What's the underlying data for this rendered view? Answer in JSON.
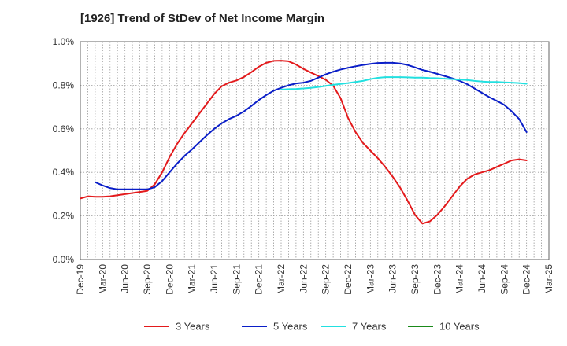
{
  "title": "[1926]  Trend of StDev of Net Income Margin",
  "chart_data": {
    "type": "line",
    "title": "[1926]  Trend of StDev of Net Income Margin",
    "xlabel": "",
    "ylabel": "",
    "x_ticks": [
      "Dec-19",
      "Mar-20",
      "Jun-20",
      "Sep-20",
      "Dec-20",
      "Mar-21",
      "Jun-21",
      "Sep-21",
      "Dec-21",
      "Mar-22",
      "Jun-22",
      "Sep-22",
      "Dec-22",
      "Mar-23",
      "Jun-23",
      "Sep-23",
      "Dec-23",
      "Mar-24",
      "Jun-24",
      "Sep-24",
      "Dec-24",
      "Mar-25"
    ],
    "y_ticks": [
      "0.0%",
      "0.2%",
      "0.4%",
      "0.6%",
      "0.8%",
      "1.0%"
    ],
    "ylim": [
      0,
      1.0
    ],
    "y_unit": "%",
    "grid": true,
    "legend_position": "bottom",
    "series": [
      {
        "name": "3 Years",
        "color": "#e31a1c",
        "x": [
          "Dec-19",
          "Jan-20",
          "Feb-20",
          "Mar-20",
          "Apr-20",
          "May-20",
          "Jun-20",
          "Jul-20",
          "Aug-20",
          "Sep-20",
          "Oct-20",
          "Nov-20",
          "Dec-20",
          "Jan-21",
          "Feb-21",
          "Mar-21",
          "Apr-21",
          "May-21",
          "Jun-21",
          "Jul-21",
          "Aug-21",
          "Sep-21",
          "Oct-21",
          "Nov-21",
          "Dec-21",
          "Jan-22",
          "Feb-22",
          "Mar-22",
          "Apr-22",
          "May-22",
          "Jun-22",
          "Jul-22",
          "Aug-22",
          "Sep-22",
          "Oct-22",
          "Nov-22",
          "Dec-22",
          "Jan-23",
          "Feb-23",
          "Mar-23",
          "Apr-23",
          "May-23",
          "Jun-23",
          "Jul-23",
          "Aug-23",
          "Sep-23",
          "Oct-23",
          "Nov-23",
          "Dec-23",
          "Jan-24",
          "Feb-24",
          "Mar-24",
          "Apr-24",
          "May-24",
          "Jun-24",
          "Jul-24",
          "Aug-24",
          "Sep-24",
          "Oct-24",
          "Nov-24",
          "Dec-24"
        ],
        "values": [
          0.28,
          0.29,
          0.288,
          0.288,
          0.29,
          0.295,
          0.3,
          0.305,
          0.31,
          0.315,
          0.345,
          0.4,
          0.47,
          0.53,
          0.58,
          0.625,
          0.67,
          0.715,
          0.76,
          0.795,
          0.812,
          0.822,
          0.838,
          0.86,
          0.885,
          0.903,
          0.912,
          0.913,
          0.91,
          0.895,
          0.875,
          0.858,
          0.842,
          0.825,
          0.798,
          0.74,
          0.65,
          0.585,
          0.535,
          0.5,
          0.465,
          0.425,
          0.38,
          0.33,
          0.27,
          0.205,
          0.165,
          0.175,
          0.205,
          0.245,
          0.29,
          0.335,
          0.37,
          0.39,
          0.4,
          0.41,
          0.425,
          0.44,
          0.455,
          0.46,
          0.455
        ]
      },
      {
        "name": "5 Years",
        "color": "#0a1ec8",
        "x": [
          "Dec-19",
          "Jan-20",
          "Feb-20",
          "Mar-20",
          "Apr-20",
          "May-20",
          "Jun-20",
          "Jul-20",
          "Aug-20",
          "Sep-20",
          "Oct-20",
          "Nov-20",
          "Dec-20",
          "Jan-21",
          "Feb-21",
          "Mar-21",
          "Apr-21",
          "May-21",
          "Jun-21",
          "Jul-21",
          "Aug-21",
          "Sep-21",
          "Oct-21",
          "Nov-21",
          "Dec-21",
          "Jan-22",
          "Feb-22",
          "Mar-22",
          "Apr-22",
          "May-22",
          "Jun-22",
          "Jul-22",
          "Aug-22",
          "Sep-22",
          "Oct-22",
          "Nov-22",
          "Dec-22",
          "Jan-23",
          "Feb-23",
          "Mar-23",
          "Apr-23",
          "May-23",
          "Jun-23",
          "Jul-23",
          "Aug-23",
          "Sep-23",
          "Oct-23",
          "Nov-23",
          "Dec-23",
          "Jan-24",
          "Feb-24",
          "Mar-24",
          "Apr-24",
          "May-24",
          "Jun-24",
          "Jul-24",
          "Aug-24",
          "Sep-24",
          "Oct-24",
          "Nov-24",
          "Dec-24"
        ],
        "values": [
          null,
          null,
          0.355,
          0.34,
          0.328,
          0.322,
          0.322,
          0.322,
          0.322,
          0.322,
          0.332,
          0.36,
          0.4,
          0.44,
          0.475,
          0.505,
          0.538,
          0.57,
          0.6,
          0.625,
          0.645,
          0.66,
          0.68,
          0.705,
          0.732,
          0.755,
          0.775,
          0.788,
          0.8,
          0.808,
          0.812,
          0.82,
          0.835,
          0.85,
          0.862,
          0.872,
          0.88,
          0.887,
          0.893,
          0.898,
          0.902,
          0.903,
          0.903,
          0.9,
          0.893,
          0.882,
          0.87,
          0.862,
          0.852,
          0.842,
          0.832,
          0.82,
          0.805,
          0.785,
          0.765,
          0.745,
          0.728,
          0.71,
          0.68,
          0.645,
          0.585
        ]
      },
      {
        "name": "7 Years",
        "color": "#22e0e0",
        "x": [
          "Mar-22",
          "Apr-22",
          "May-22",
          "Jun-22",
          "Jul-22",
          "Aug-22",
          "Sep-22",
          "Oct-22",
          "Nov-22",
          "Dec-22",
          "Jan-23",
          "Feb-23",
          "Mar-23",
          "Apr-23",
          "May-23",
          "Jun-23",
          "Jul-23",
          "Aug-23",
          "Sep-23",
          "Oct-23",
          "Nov-23",
          "Dec-23",
          "Jan-24",
          "Feb-24",
          "Mar-24",
          "Apr-24",
          "May-24",
          "Jun-24",
          "Jul-24",
          "Aug-24",
          "Sep-24",
          "Oct-24",
          "Nov-24",
          "Dec-24"
        ],
        "values": [
          0.78,
          0.782,
          0.783,
          0.785,
          0.788,
          0.792,
          0.797,
          0.802,
          0.806,
          0.81,
          0.815,
          0.82,
          0.828,
          0.834,
          0.837,
          0.837,
          0.837,
          0.836,
          0.835,
          0.835,
          0.833,
          0.832,
          0.83,
          0.828,
          0.826,
          0.824,
          0.82,
          0.817,
          0.815,
          0.815,
          0.813,
          0.812,
          0.81,
          0.807
        ]
      },
      {
        "name": "10 Years",
        "color": "#1a8a1a",
        "x": [],
        "values": []
      }
    ]
  }
}
